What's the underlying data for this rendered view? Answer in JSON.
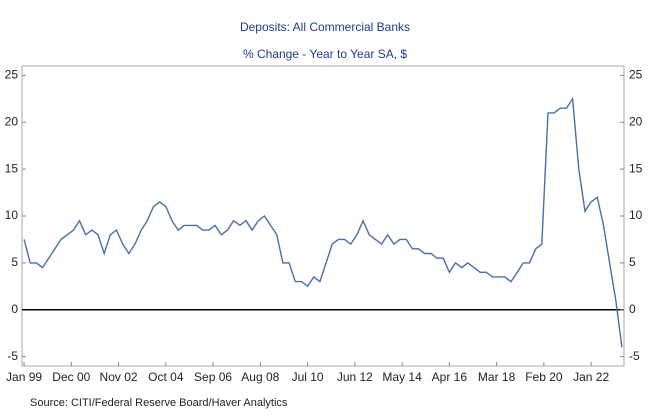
{
  "chart_data": {
    "type": "line",
    "title": "Deposits: All Commercial Banks",
    "subtitle": "% Change - Year to Year    SA, $",
    "source": "Source:  CITI/Federal Reserve Board/Haver Analytics",
    "x": [
      "1999-01",
      "1999-04",
      "1999-07",
      "1999-10",
      "2000-01",
      "2000-04",
      "2000-07",
      "2000-10",
      "2001-01",
      "2001-04",
      "2001-07",
      "2001-10",
      "2002-01",
      "2002-04",
      "2002-07",
      "2002-10",
      "2003-01",
      "2003-04",
      "2003-07",
      "2003-10",
      "2004-01",
      "2004-04",
      "2004-07",
      "2004-10",
      "2005-01",
      "2005-04",
      "2005-07",
      "2005-10",
      "2006-01",
      "2006-04",
      "2006-07",
      "2006-10",
      "2007-01",
      "2007-04",
      "2007-07",
      "2007-10",
      "2008-01",
      "2008-04",
      "2008-07",
      "2008-10",
      "2009-01",
      "2009-04",
      "2009-07",
      "2009-10",
      "2010-01",
      "2010-04",
      "2010-07",
      "2010-10",
      "2011-01",
      "2011-04",
      "2011-07",
      "2011-10",
      "2012-01",
      "2012-04",
      "2012-07",
      "2012-10",
      "2013-01",
      "2013-04",
      "2013-07",
      "2013-10",
      "2014-01",
      "2014-04",
      "2014-07",
      "2014-10",
      "2015-01",
      "2015-04",
      "2015-07",
      "2015-10",
      "2016-01",
      "2016-04",
      "2016-07",
      "2016-10",
      "2017-01",
      "2017-04",
      "2017-07",
      "2017-10",
      "2018-01",
      "2018-04",
      "2018-07",
      "2018-10",
      "2019-01",
      "2019-04",
      "2019-07",
      "2019-10",
      "2020-01",
      "2020-04",
      "2020-07",
      "2020-10",
      "2021-01",
      "2021-04",
      "2021-07",
      "2021-10",
      "2022-01",
      "2022-04",
      "2022-07",
      "2022-10",
      "2023-01",
      "2023-04"
    ],
    "series": [
      {
        "name": "Deposits",
        "color": "#4a6ea8",
        "values": [
          7.5,
          5,
          5,
          4.5,
          5.5,
          6.5,
          7.5,
          8,
          8.5,
          9.5,
          8,
          8.5,
          8,
          6,
          8,
          8.5,
          7,
          6,
          7,
          8.5,
          9.5,
          11,
          11.5,
          11,
          9.5,
          8.5,
          9,
          9,
          9,
          8.5,
          8.5,
          9,
          8,
          8.5,
          9.5,
          9,
          9.5,
          8.5,
          9.5,
          10,
          9,
          8,
          5,
          5,
          3,
          3,
          2.5,
          3.5,
          3,
          5,
          7,
          7.5,
          7.5,
          7,
          8,
          9.5,
          8,
          7.5,
          7,
          8,
          7,
          7.5,
          7.5,
          6.5,
          6.5,
          6,
          6,
          5.5,
          5.5,
          4,
          5,
          4.5,
          5,
          4.5,
          4,
          4,
          3.5,
          3.5,
          3.5,
          3,
          4,
          5,
          5,
          6.5,
          7,
          21,
          21,
          21.5,
          21.5,
          22.5,
          15,
          10.5,
          11.5,
          12,
          9,
          5,
          1,
          -4
        ]
      }
    ],
    "xlim": [
      "1998-12",
      "2023-05"
    ],
    "xticks": [
      {
        "value": "1999-01",
        "label": "Jan 99"
      },
      {
        "value": "2000-12",
        "label": "Dec 00"
      },
      {
        "value": "2002-11",
        "label": "Nov 02"
      },
      {
        "value": "2004-10",
        "label": "Oct 04"
      },
      {
        "value": "2006-09",
        "label": "Sep 06"
      },
      {
        "value": "2008-08",
        "label": "Aug 08"
      },
      {
        "value": "2010-07",
        "label": "Jul 10"
      },
      {
        "value": "2012-06",
        "label": "Jun 12"
      },
      {
        "value": "2014-05",
        "label": "May 14"
      },
      {
        "value": "2016-04",
        "label": "Apr 16"
      },
      {
        "value": "2018-03",
        "label": "Mar 18"
      },
      {
        "value": "2020-02",
        "label": "Feb 20"
      },
      {
        "value": "2022-01",
        "label": "Jan 22"
      }
    ],
    "ylim": [
      -6,
      26
    ],
    "yticks": [
      -5,
      0,
      5,
      10,
      15,
      20,
      25
    ],
    "y2lim": [
      -6,
      26
    ],
    "y2ticks": [
      -5,
      0,
      5,
      10,
      15,
      20,
      25
    ],
    "grid": false
  }
}
